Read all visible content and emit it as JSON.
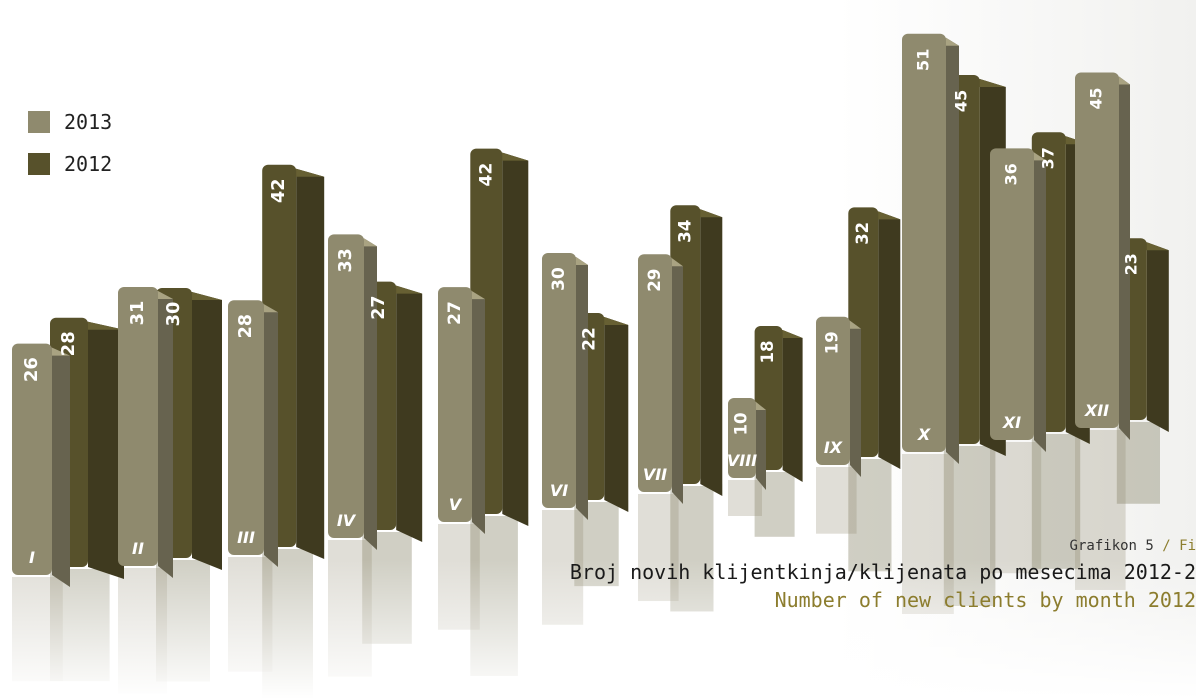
{
  "chart_data": {
    "type": "bar",
    "categories": [
      "I",
      "II",
      "III",
      "IV",
      "V",
      "VI",
      "VII",
      "VIII",
      "IX",
      "X",
      "XI",
      "XII"
    ],
    "series": [
      {
        "name": "2013",
        "values": [
          26,
          31,
          28,
          33,
          27,
          30,
          29,
          10,
          19,
          51,
          36,
          45
        ]
      },
      {
        "name": "2012",
        "values": [
          28,
          30,
          42,
          27,
          42,
          22,
          34,
          18,
          32,
          45,
          37,
          23
        ]
      }
    ],
    "legend": "top-left",
    "grid": false
  },
  "legend_items": [
    {
      "label": "2013",
      "color": "#8f8a6e"
    },
    {
      "label": "2012",
      "color": "#57512b"
    }
  ],
  "caption": {
    "figure_label": "Grafikon 5",
    "figure_label_sep": "/ Fi",
    "title": "Broj novih klijentkinja/klijenata po mesecima 2012-2",
    "subtitle": "Number of new clients by month 2012"
  },
  "colors": {
    "accent": "#8c7d2e",
    "bar_2013": "#8f8a6e",
    "bar_2012": "#57512b"
  }
}
